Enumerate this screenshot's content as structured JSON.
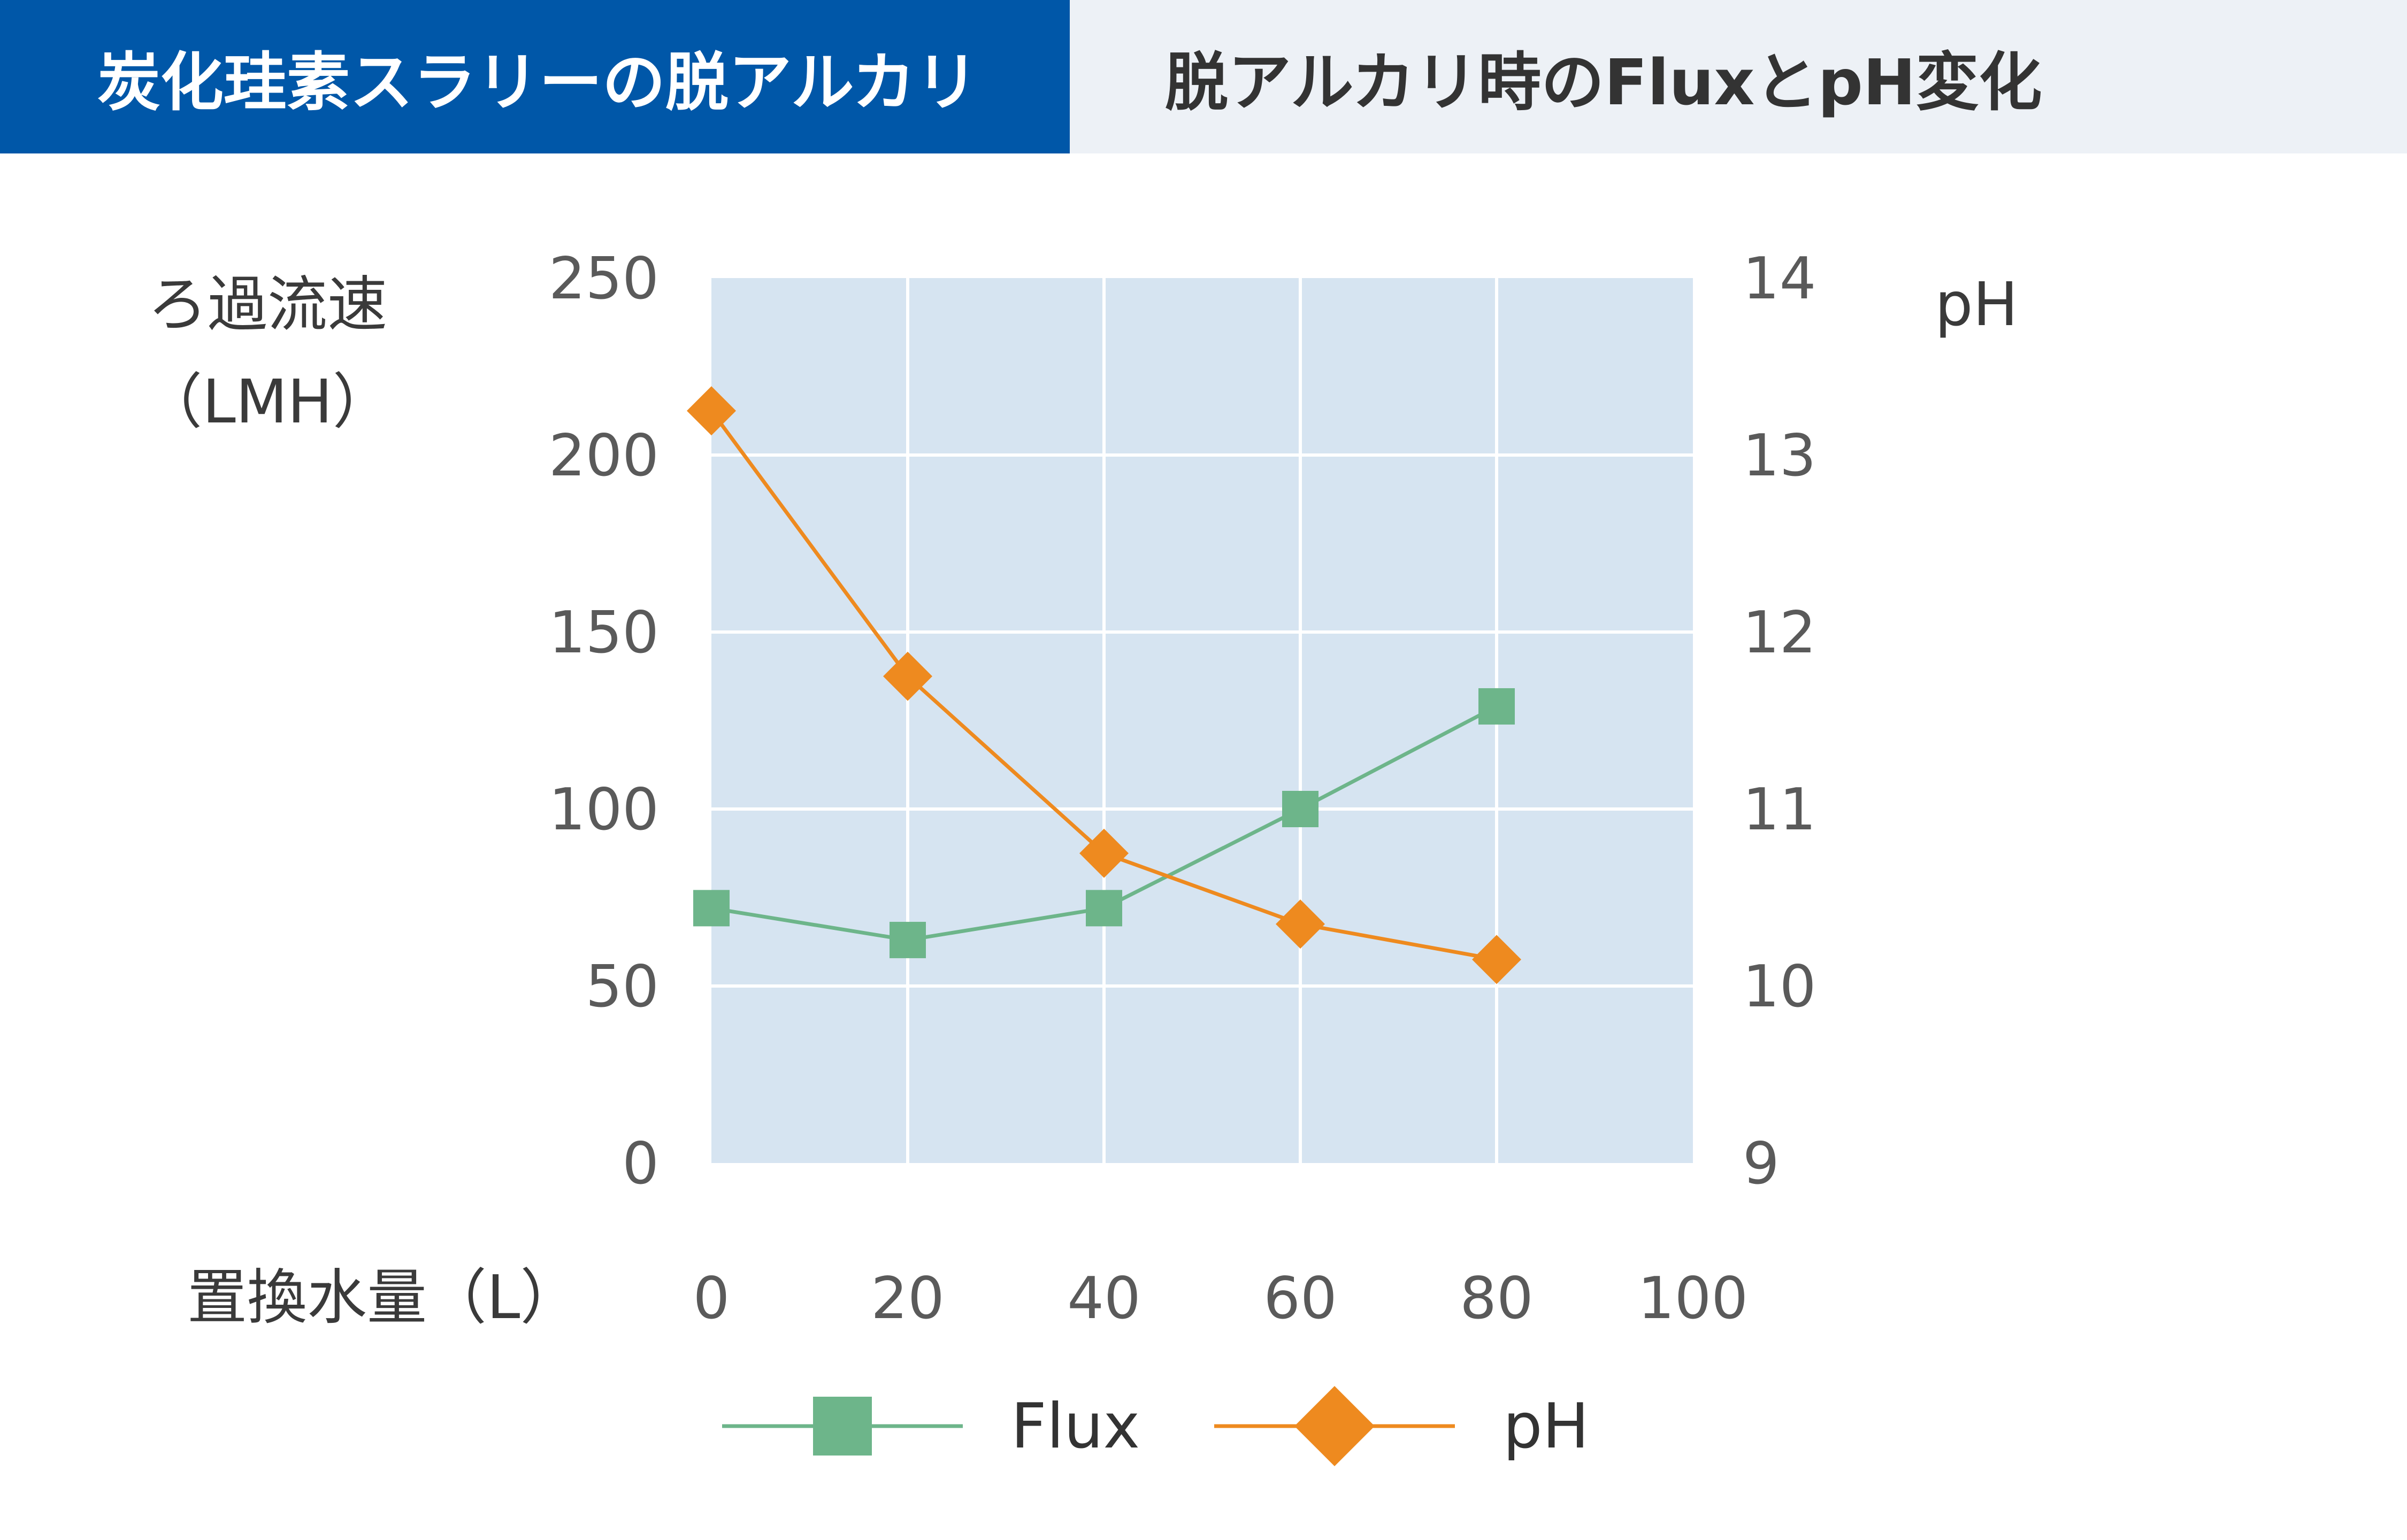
{
  "tabs": [
    {
      "label": "炭化珪素スラリーの脱アルカリ",
      "active": true
    },
    {
      "label": "脱アルカリ時のFluxとpH変化",
      "active": false
    }
  ],
  "colors": {
    "tab_active": "#0057a8",
    "tab_inactive": "#edf1f6",
    "plot_background": "#d6e4f1",
    "grid": "#ffffff",
    "flux": "#6db58a",
    "ph": "#ee8a1f"
  },
  "chart_data": {
    "type": "line",
    "x": [
      0,
      20,
      40,
      60,
      80
    ],
    "xticks": [
      "0",
      "20",
      "40",
      "60",
      "80",
      "100"
    ],
    "xlim": [
      0,
      100
    ],
    "xlabel": "置換水量（L）",
    "ylabel_left_lines": [
      "ろ過流速",
      "（LMH）"
    ],
    "ylim_left": [
      0,
      250
    ],
    "yticks_left": [
      "0",
      "50",
      "100",
      "150",
      "200",
      "250"
    ],
    "ylabel_right": "pH",
    "ylim_right": [
      9,
      14
    ],
    "yticks_right": [
      "9",
      "10",
      "11",
      "12",
      "13",
      "14"
    ],
    "grid": true,
    "legend_position": "bottom",
    "series": [
      {
        "name": "Flux",
        "axis": "left",
        "marker": "square",
        "values": [
          72,
          63,
          72,
          100,
          129
        ]
      },
      {
        "name": "pH",
        "axis": "right",
        "marker": "diamond",
        "values": [
          13.25,
          11.75,
          10.75,
          10.35,
          10.15
        ]
      }
    ]
  }
}
